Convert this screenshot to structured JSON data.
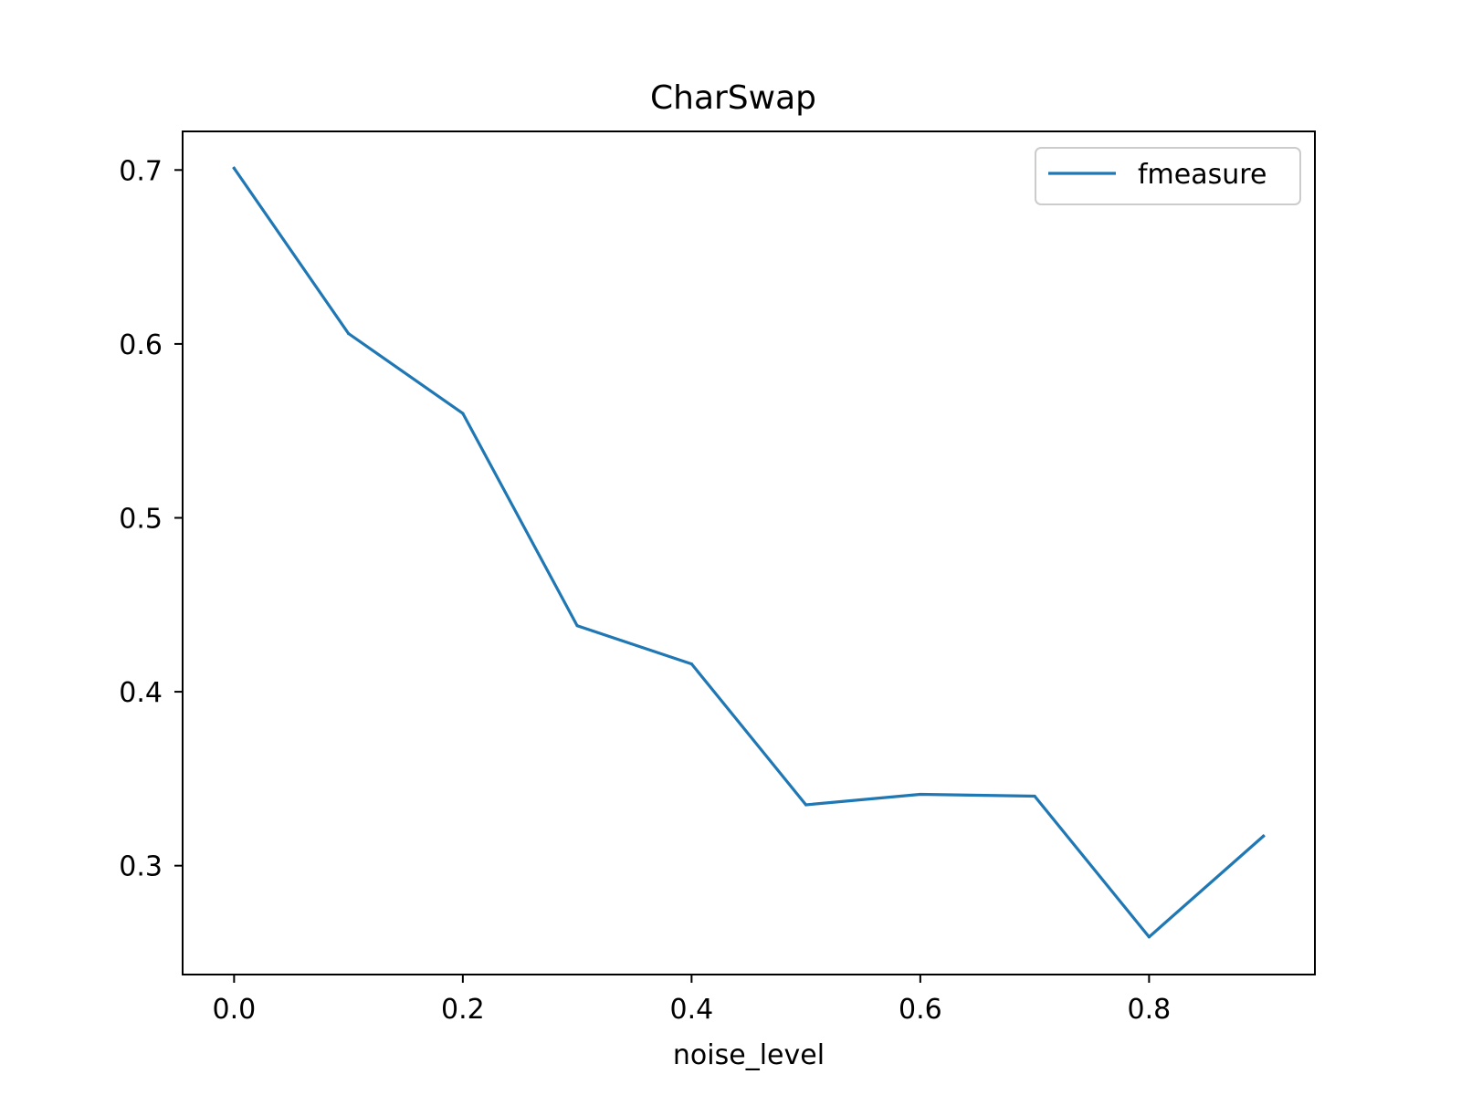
{
  "chart_data": {
    "type": "line",
    "title": "CharSwap",
    "xlabel": "noise_level",
    "ylabel": "",
    "x": [
      0.0,
      0.1,
      0.2,
      0.3,
      0.4,
      0.5,
      0.6,
      0.7,
      0.8,
      0.9
    ],
    "series": [
      {
        "name": "fmeasure",
        "color": "#1f77b4",
        "values": [
          0.701,
          0.606,
          0.56,
          0.438,
          0.416,
          0.335,
          0.341,
          0.34,
          0.259,
          0.317
        ]
      }
    ],
    "xlim": [
      -0.045,
      0.945
    ],
    "ylim": [
      0.2374,
      0.7222
    ],
    "xticks": [
      0.0,
      0.2,
      0.4,
      0.6,
      0.8
    ],
    "xtick_labels": [
      "0.0",
      "0.2",
      "0.4",
      "0.6",
      "0.8"
    ],
    "yticks": [
      0.3,
      0.4,
      0.5,
      0.6,
      0.7
    ],
    "ytick_labels": [
      "0.3",
      "0.4",
      "0.5",
      "0.6",
      "0.7"
    ],
    "grid": false,
    "legend_position": "top-right"
  }
}
